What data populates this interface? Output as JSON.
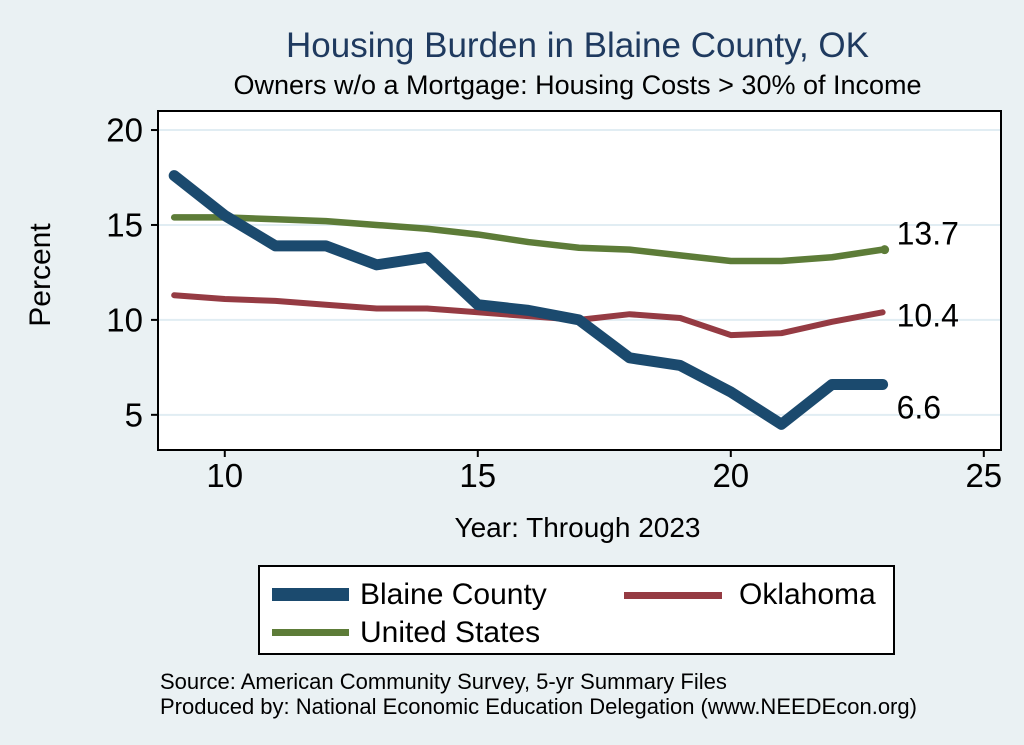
{
  "title": "Housing Burden in Blaine County, OK",
  "subtitle": "Owners w/o a Mortgage: Housing Costs > 30% of Income",
  "footer": {
    "source": "Source: American Community Survey, 5-yr Summary Files",
    "produced_by": "Produced by: National Economic Education Delegation (www.NEEDEcon.org)"
  },
  "colors": {
    "background": "#eaf1f3",
    "plot_background": "#ffffff",
    "title_text": "#1f3a5f",
    "gridline": "#e1edf3",
    "axis": "#000000"
  },
  "chart_data": {
    "type": "line",
    "title": "Housing Burden in Blaine County, OK",
    "subtitle": "Owners w/o a Mortgage: Housing Costs > 30% of Income",
    "xlabel": "Year: Through 2023",
    "ylabel": "Percent",
    "x": [
      9,
      10,
      11,
      12,
      13,
      14,
      15,
      16,
      17,
      18,
      19,
      20,
      21,
      22,
      23
    ],
    "series": [
      {
        "name": "Blaine County",
        "color": "#1b4a6e",
        "width": 11,
        "values": [
          17.6,
          15.5,
          13.9,
          13.9,
          12.9,
          13.3,
          10.8,
          10.5,
          10.0,
          8.0,
          7.6,
          6.2,
          4.5,
          6.6,
          6.6
        ],
        "end_label": "6.6",
        "end_dot": false
      },
      {
        "name": "Oklahoma",
        "color": "#953b43",
        "width": 6,
        "values": [
          11.3,
          11.1,
          11.0,
          10.8,
          10.6,
          10.6,
          10.4,
          10.2,
          10.0,
          10.3,
          10.1,
          9.2,
          9.3,
          9.9,
          10.4
        ],
        "end_label": "10.4",
        "end_dot": false
      },
      {
        "name": "United States",
        "color": "#5d7c38",
        "width": 6.5,
        "values": [
          15.4,
          15.4,
          15.3,
          15.2,
          15.0,
          14.8,
          14.5,
          14.1,
          13.8,
          13.7,
          13.4,
          13.1,
          13.1,
          13.3,
          13.7
        ],
        "end_label": "13.7",
        "end_dot": true
      }
    ],
    "xticks": [
      10,
      15,
      20,
      25
    ],
    "yticks": [
      5,
      10,
      15,
      20
    ],
    "xlim": [
      8.7,
      25.32
    ],
    "ylim": [
      3.2,
      20.95
    ],
    "grid": true,
    "legend_position": "bottom"
  }
}
